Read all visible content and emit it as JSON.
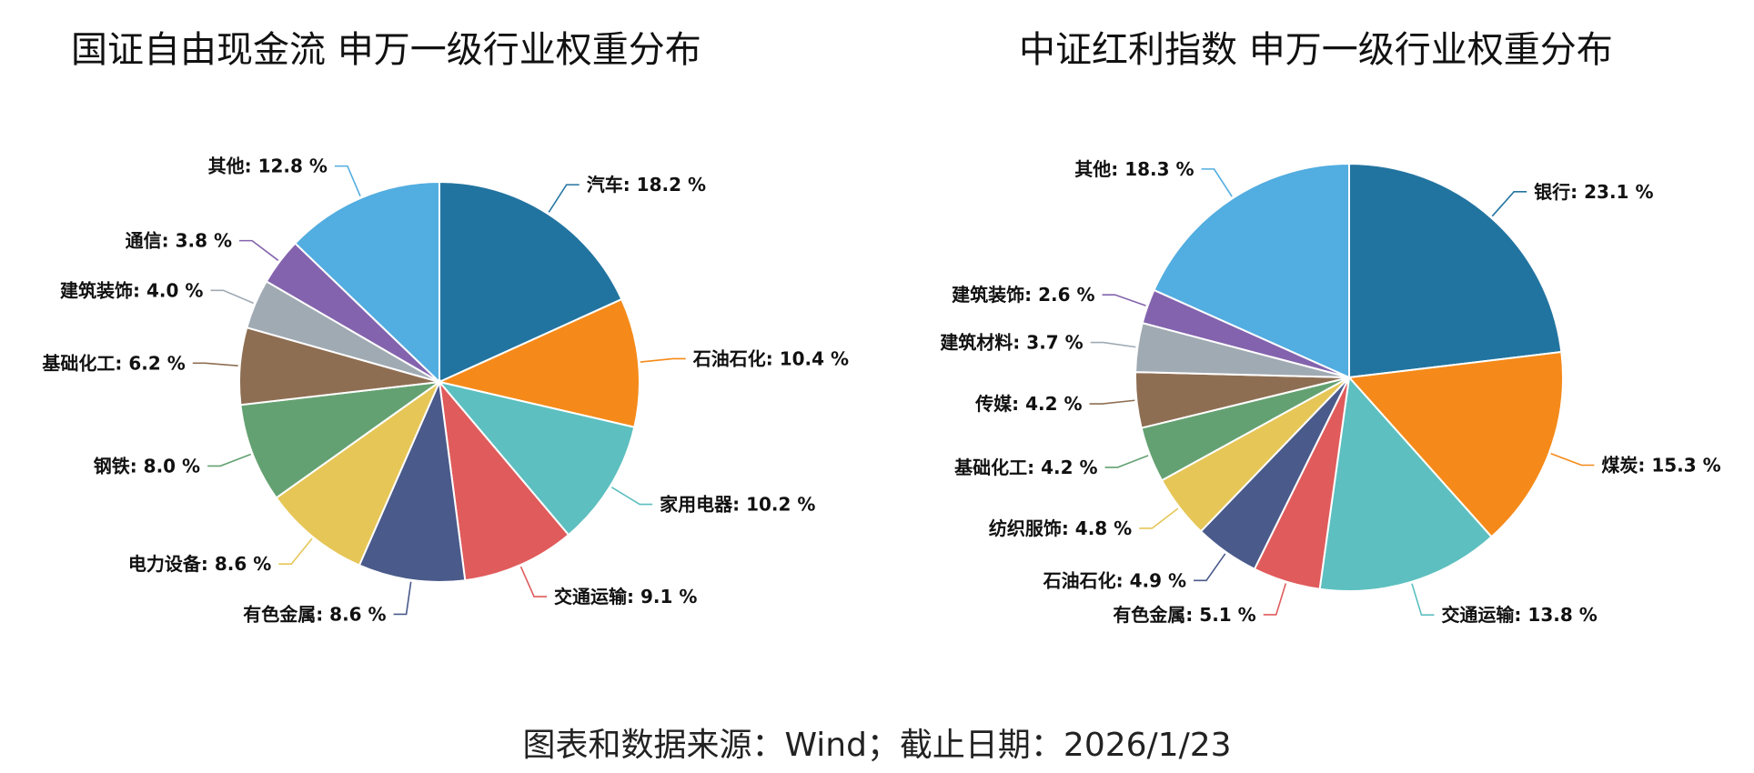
{
  "chart_data": [
    {
      "type": "pie",
      "title": "国证自由现金流 申万一级行业权重分布",
      "unit": "%",
      "labels": [
        "汽车",
        "石油石化",
        "家用电器",
        "交通运输",
        "有色金属",
        "电力设备",
        "钢铁",
        "基础化工",
        "建筑装饰",
        "通信",
        "其他"
      ],
      "values": [
        18.2,
        10.4,
        10.2,
        9.1,
        8.6,
        8.6,
        8.0,
        6.2,
        4.0,
        3.8,
        12.8
      ],
      "colors": [
        "#2274a0",
        "#f58a1a",
        "#5dbfbf",
        "#e05b5c",
        "#4a5a8a",
        "#e6c657",
        "#64a172",
        "#8e6e53",
        "#a0aab3",
        "#8363ad",
        "#52ade0"
      ]
    },
    {
      "type": "pie",
      "title": "中证红利指数 申万一级行业权重分布",
      "unit": "%",
      "labels": [
        "银行",
        "煤炭",
        "交通运输",
        "有色金属",
        "石油石化",
        "纺织服饰",
        "基础化工",
        "传媒",
        "建筑材料",
        "建筑装饰",
        "其他"
      ],
      "values": [
        23.1,
        15.3,
        13.8,
        5.1,
        4.9,
        4.8,
        4.2,
        4.2,
        3.7,
        2.6,
        18.3
      ],
      "colors": [
        "#2274a0",
        "#f58a1a",
        "#5dbfbf",
        "#e05b5c",
        "#4a5a8a",
        "#e6c657",
        "#64a172",
        "#8e6e53",
        "#a0aab3",
        "#8363ad",
        "#52ade0"
      ]
    }
  ],
  "footer": "图表和数据来源：Wind；截止日期：2026/1/23"
}
